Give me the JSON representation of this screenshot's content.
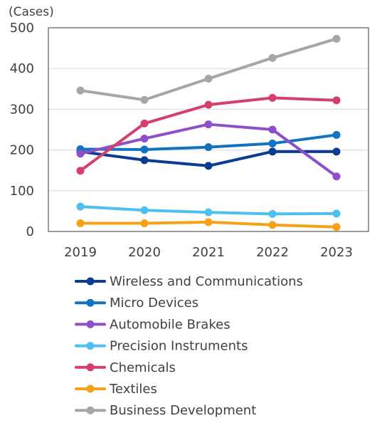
{
  "chart_data": {
    "type": "line",
    "ylabel": "(Cases)",
    "ylim": [
      0,
      500
    ],
    "yticks": [
      0,
      100,
      200,
      300,
      400,
      500
    ],
    "categories": [
      "2019",
      "2020",
      "2021",
      "2022",
      "2023"
    ],
    "grid": true,
    "legend_position": "bottom",
    "series": [
      {
        "name": "Wireless and Communications",
        "color": "#0A3D91",
        "values": [
          196,
          175,
          161,
          196,
          196
        ]
      },
      {
        "name": "Micro Devices",
        "color": "#1273C1",
        "values": [
          202,
          201,
          207,
          216,
          237
        ]
      },
      {
        "name": "Automobile Brakes",
        "color": "#8E4FCB",
        "values": [
          191,
          228,
          263,
          250,
          135
        ]
      },
      {
        "name": "Precision Instruments",
        "color": "#4CC1F0",
        "values": [
          61,
          52,
          47,
          43,
          44
        ]
      },
      {
        "name": "Chemicals",
        "color": "#D43F6C",
        "values": [
          149,
          265,
          311,
          328,
          322
        ]
      },
      {
        "name": "Textiles",
        "color": "#F7A116",
        "values": [
          20,
          20,
          23,
          16,
          11
        ]
      },
      {
        "name": "Business Development",
        "color": "#A6A6A6",
        "values": [
          346,
          323,
          375,
          426,
          473
        ]
      }
    ]
  }
}
